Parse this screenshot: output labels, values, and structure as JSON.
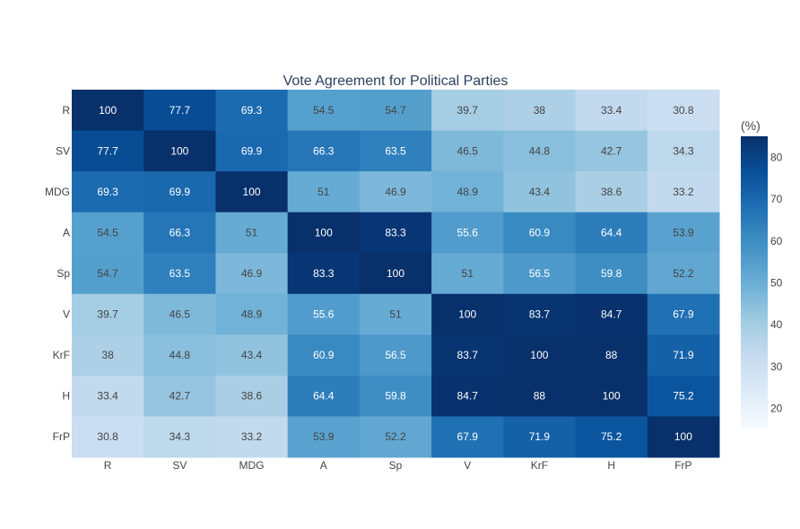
{
  "chart_data": {
    "type": "heatmap",
    "title": "Vote Agreement for Political Parties",
    "x_categories": [
      "R",
      "SV",
      "MDG",
      "A",
      "Sp",
      "V",
      "KrF",
      "H",
      "FrP"
    ],
    "y_categories": [
      "R",
      "SV",
      "MDG",
      "A",
      "Sp",
      "V",
      "KrF",
      "H",
      "FrP"
    ],
    "values": [
      [
        100,
        77.7,
        69.3,
        54.5,
        54.7,
        39.7,
        38,
        33.4,
        30.8
      ],
      [
        77.7,
        100,
        69.9,
        66.3,
        63.5,
        46.5,
        44.8,
        42.7,
        34.3
      ],
      [
        69.3,
        69.9,
        100,
        51,
        46.9,
        48.9,
        43.4,
        38.6,
        33.2
      ],
      [
        54.5,
        66.3,
        51,
        100,
        83.3,
        55.6,
        60.9,
        64.4,
        53.9
      ],
      [
        54.7,
        63.5,
        46.9,
        83.3,
        100,
        51,
        56.5,
        59.8,
        52.2
      ],
      [
        39.7,
        46.5,
        48.9,
        55.6,
        51,
        100,
        83.7,
        84.7,
        67.9
      ],
      [
        38,
        44.8,
        43.4,
        60.9,
        56.5,
        83.7,
        100,
        88,
        71.9
      ],
      [
        33.4,
        42.7,
        38.6,
        64.4,
        59.8,
        84.7,
        88,
        100,
        75.2
      ],
      [
        30.8,
        34.3,
        33.2,
        53.9,
        52.2,
        67.9,
        71.9,
        75.2,
        100
      ]
    ],
    "colorscale": "Blues",
    "zmin": 15,
    "zmax": 85,
    "colorbar": {
      "title": "(%)",
      "ticks": [
        20,
        30,
        40,
        50,
        60,
        70,
        80
      ]
    },
    "legend": "none",
    "grid": false
  }
}
